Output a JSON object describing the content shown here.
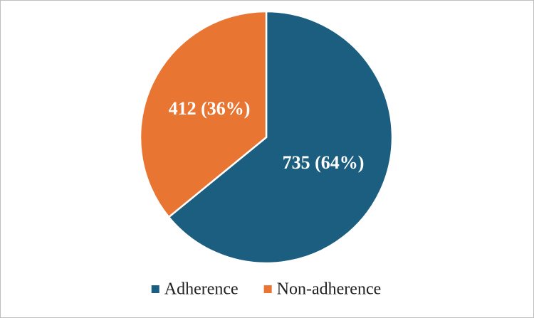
{
  "chart_data": {
    "type": "pie",
    "categories": [
      "Adherence",
      "Non-adherence"
    ],
    "values": [
      735,
      412
    ],
    "value_labels": [
      "735 (64%)",
      "412 (36%)"
    ],
    "colors": [
      "#1b5e80",
      "#e97532"
    ],
    "legend": "bottom"
  }
}
